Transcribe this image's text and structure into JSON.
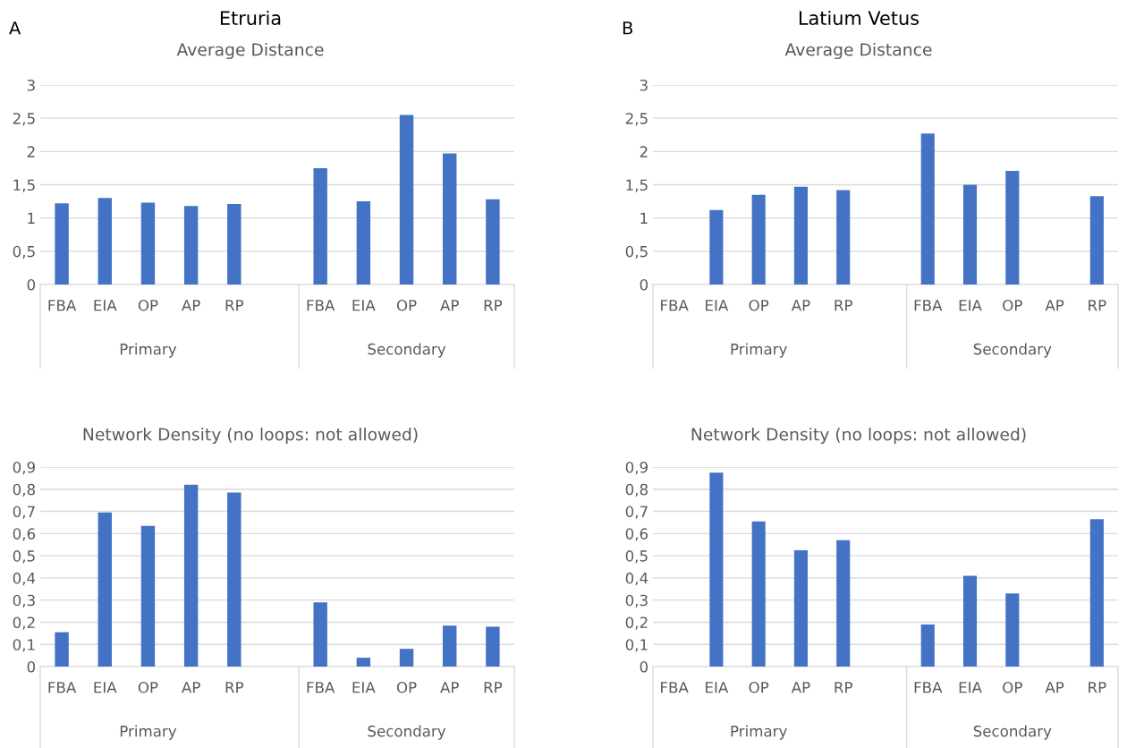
{
  "chart_data": [
    {
      "type": "bar",
      "title": "Etruria",
      "subtitle": "Average Distance",
      "annotations": [
        "A",
        "Primary",
        "Secondary"
      ],
      "categories": [
        "FBA",
        "EIA",
        "OP",
        "AP",
        "RP",
        null,
        "FBA",
        "EIA",
        "OP",
        "AP",
        "RP"
      ],
      "color": "#4472c4",
      "values": [
        1.22,
        1.3,
        1.23,
        1.18,
        1.21,
        null,
        1.75,
        1.25,
        2.55,
        1.97,
        1.28
      ],
      "ylim": [
        0,
        3
      ],
      "yticks": [
        0,
        {
          "value": 0.5,
          "label": "0,5"
        },
        1,
        {
          "value": 1.5,
          "label": "1,5"
        },
        2,
        {
          "value": 2.5,
          "label": "2,5"
        },
        3
      ],
      "grid": "y"
    },
    {
      "type": "bar",
      "title": "Latium Vetus",
      "subtitle": "Average Distance",
      "annotations": [
        "B",
        "Primary",
        "Secondary"
      ],
      "categories": [
        "FBA",
        "EIA",
        "OP",
        "AP",
        "RP",
        null,
        "FBA",
        "EIA",
        "OP",
        "AP",
        "RP"
      ],
      "color": "#4472c4",
      "values": [
        null,
        1.12,
        1.35,
        1.47,
        1.42,
        null,
        2.27,
        1.5,
        1.71,
        null,
        1.33
      ],
      "ylim": [
        0,
        3
      ],
      "yticks": [
        0,
        {
          "value": 0.5,
          "label": "0,5"
        },
        1,
        {
          "value": 1.5,
          "label": "1,5"
        },
        2,
        {
          "value": 2.5,
          "label": "2,5"
        },
        3
      ],
      "grid": "y"
    },
    {
      "type": "bar",
      "title": "Network Density (no loops: not allowed)",
      "annotations": [
        "Primary",
        "Secondary"
      ],
      "categories": [
        "FBA",
        "EIA",
        "OP",
        "AP",
        "RP",
        null,
        "FBA",
        "EIA",
        "OP",
        "AP",
        "RP"
      ],
      "color": "#4472c4",
      "values": [
        0.155,
        0.695,
        0.635,
        0.82,
        0.785,
        null,
        0.29,
        0.04,
        0.08,
        0.185,
        0.18
      ],
      "ylim": [
        0,
        0.9
      ],
      "yticks": [
        0,
        {
          "value": 0.1,
          "label": "0,1"
        },
        {
          "value": 0.2,
          "label": "0,2"
        },
        {
          "value": 0.3,
          "label": "0,3"
        },
        {
          "value": 0.4,
          "label": "0,4"
        },
        {
          "value": 0.5,
          "label": "0,5"
        },
        {
          "value": 0.6,
          "label": "0,6"
        },
        {
          "value": 0.7,
          "label": "0,7"
        },
        {
          "value": 0.8,
          "label": "0,8"
        },
        {
          "value": 0.9,
          "label": "0,9"
        }
      ],
      "grid": "y"
    },
    {
      "type": "bar",
      "title": "Network Density (no loops: not allowed)",
      "annotations": [
        "Primary",
        "Secondary"
      ],
      "categories": [
        "FBA",
        "EIA",
        "OP",
        "AP",
        "RP",
        null,
        "FBA",
        "EIA",
        "OP",
        "AP",
        "RP"
      ],
      "color": "#4472c4",
      "values": [
        null,
        0.875,
        0.655,
        0.525,
        0.57,
        null,
        0.19,
        0.41,
        0.33,
        null,
        0.665
      ],
      "ylim": [
        0,
        0.9
      ],
      "yticks": [
        0,
        {
          "value": 0.1,
          "label": "0,1"
        },
        {
          "value": 0.2,
          "label": "0,2"
        },
        {
          "value": 0.3,
          "label": "0,3"
        },
        {
          "value": 0.4,
          "label": "0,4"
        },
        {
          "value": 0.5,
          "label": "0,5"
        },
        {
          "value": 0.6,
          "label": "0,6"
        },
        {
          "value": 0.7,
          "label": "0,7"
        },
        {
          "value": 0.8,
          "label": "0,8"
        },
        {
          "value": 0.9,
          "label": "0,9"
        }
      ],
      "grid": "y"
    }
  ]
}
